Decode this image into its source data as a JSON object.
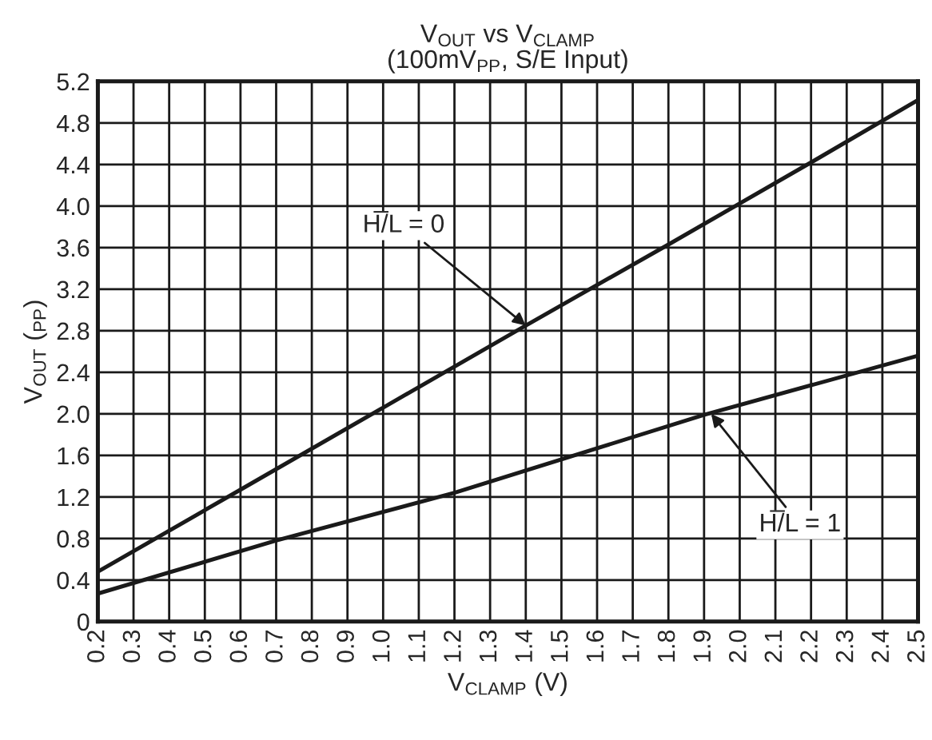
{
  "chart_data": {
    "type": "line",
    "title": "V$_{OUT}$ vs V$_{CLAMP}$\n(100mV$_{PP}$, S/E Input)",
    "xlabel": "V$_{CLAMP}$ (V)",
    "ylabel": "V$_{OUT}$ ($_{PP}$)",
    "series": [
      {
        "x": [
          0.2,
          0.6,
          1.0,
          1.4,
          1.8,
          2.2,
          2.5
        ],
        "values": [
          0.48,
          1.27,
          2.06,
          2.85,
          3.63,
          4.42,
          5.02
        ],
        "color": "#1a1a1a"
      },
      {
        "x": [
          0.2,
          0.7,
          1.2,
          1.9,
          2.5
        ],
        "values": [
          0.27,
          0.78,
          1.24,
          1.99,
          2.56
        ],
        "color": "#1a1a1a"
      }
    ],
    "annotations": [
      {
        "text": "H̅/L = 0",
        "x": 1.4,
        "y": 2.85
      },
      {
        "text": "H̅/L = 1",
        "x": 1.92,
        "y": 2.0
      }
    ],
    "xlim": [
      0.2,
      2.5
    ],
    "xticks": [
      {
        "value": 0.2,
        "label": "0.2"
      },
      {
        "value": 0.3,
        "label": "0.3"
      },
      {
        "value": 0.4,
        "label": "0.4"
      },
      {
        "value": 0.5,
        "label": "0.5"
      },
      {
        "value": 0.6,
        "label": "0.6"
      },
      {
        "value": 0.7,
        "label": "0.7"
      },
      {
        "value": 0.8,
        "label": "0.8"
      },
      {
        "value": 0.9,
        "label": "0.9"
      },
      {
        "value": 1.0,
        "label": "1.0"
      },
      {
        "value": 1.1,
        "label": "1.1"
      },
      {
        "value": 1.2,
        "label": "1.2"
      },
      {
        "value": 1.3,
        "label": "1.3"
      },
      {
        "value": 1.4,
        "label": "1.4"
      },
      {
        "value": 1.5,
        "label": "1.5"
      },
      {
        "value": 1.6,
        "label": "1.6"
      },
      {
        "value": 1.7,
        "label": "1.7"
      },
      {
        "value": 1.8,
        "label": "1.8"
      },
      {
        "value": 1.9,
        "label": "1.9"
      },
      {
        "value": 2.0,
        "label": "2.0"
      },
      {
        "value": 2.1,
        "label": "2.1"
      },
      {
        "value": 2.2,
        "label": "2.2"
      },
      {
        "value": 2.3,
        "label": "2.3"
      },
      {
        "value": 2.4,
        "label": "2.4"
      },
      {
        "value": 2.5,
        "label": "2.5"
      }
    ],
    "ylim": [
      0,
      5.2
    ],
    "yticks": [
      0,
      {
        "value": 0.4,
        "label": "0.4"
      },
      {
        "value": 0.8,
        "label": "0.8"
      },
      {
        "value": 1.2,
        "label": "1.2"
      },
      {
        "value": 1.6,
        "label": "1.6"
      },
      {
        "value": 2.0,
        "label": "2.0"
      },
      {
        "value": 2.4,
        "label": "2.4"
      },
      {
        "value": 2.8,
        "label": "2.8"
      },
      {
        "value": 3.2,
        "label": "3.2"
      },
      {
        "value": 3.6,
        "label": "3.6"
      },
      {
        "value": 4.0,
        "label": "4.0"
      },
      {
        "value": 4.4,
        "label": "4.4"
      },
      {
        "value": 4.8,
        "label": "4.8"
      },
      {
        "value": 5.2,
        "label": "5.2"
      }
    ],
    "grid": true,
    "marker": "none",
    "line_style": "solid"
  }
}
